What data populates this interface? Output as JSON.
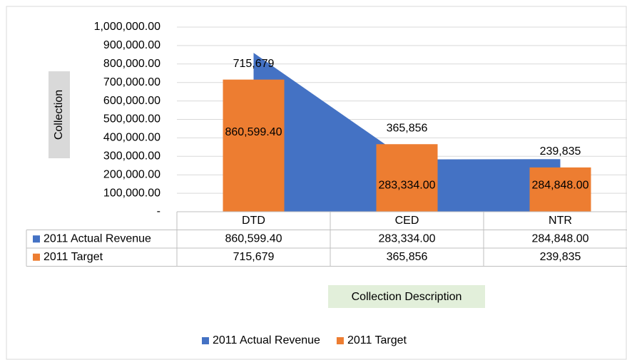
{
  "chart_data": {
    "type": "bar-area",
    "categories": [
      "DTD",
      "CED",
      "NTR"
    ],
    "series": [
      {
        "name": "2011 Actual Revenue",
        "type": "area",
        "color": "#4472c4",
        "values": [
          860599.4,
          283334.0,
          284848.0
        ],
        "value_labels": [
          "860,599.40",
          "283,334.00",
          "284,848.00"
        ]
      },
      {
        "name": "2011 Target",
        "type": "bar",
        "color": "#ed7d31",
        "values": [
          715679,
          365856,
          239835
        ],
        "value_labels": [
          "715,679",
          "365,856",
          "239,835"
        ]
      }
    ],
    "ylabel": "Collection",
    "xlabel": "Collection Description",
    "ylim": [
      0,
      1000000
    ],
    "yticks": [
      {
        "value": 0,
        "label": "-"
      },
      {
        "value": 100000,
        "label": "100,000.00"
      },
      {
        "value": 200000,
        "label": "200,000.00"
      },
      {
        "value": 300000,
        "label": "300,000.00"
      },
      {
        "value": 400000,
        "label": "400,000.00"
      },
      {
        "value": 500000,
        "label": "500,000.00"
      },
      {
        "value": 600000,
        "label": "600,000.00"
      },
      {
        "value": 700000,
        "label": "700,000.00"
      },
      {
        "value": 800000,
        "label": "800,000.00"
      },
      {
        "value": 900000,
        "label": "900,000.00"
      },
      {
        "value": 1000000,
        "label": "1,000,000.00"
      }
    ],
    "grid": true,
    "legend": "bottom",
    "data_table": true
  }
}
